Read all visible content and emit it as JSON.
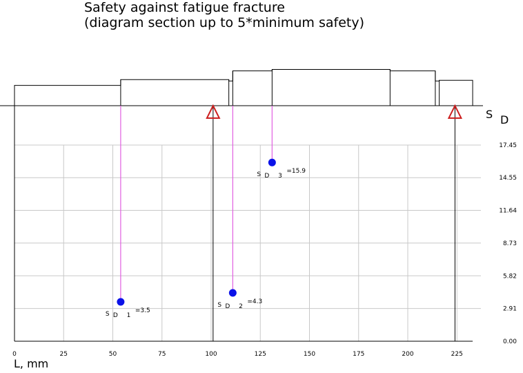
{
  "title": {
    "line1": "Safety against fatigue fracture",
    "line2": "(diagram section up to 5*minimum safety)"
  },
  "chart_data": {
    "type": "scatter",
    "xlabel": "L, mm",
    "ylabel": "S D",
    "ylabel_main": "S",
    "ylabel_sub": "D",
    "xlim": [
      0,
      233
    ],
    "ylim": [
      0,
      17.45
    ],
    "x_ticks": [
      0,
      25,
      50,
      75,
      100,
      125,
      150,
      175,
      200,
      225
    ],
    "y_ticks": [
      "0.00",
      "2.91",
      "5.82",
      "8.73",
      "11.64",
      "14.55",
      "17.45"
    ],
    "grid": true,
    "point_color": "#0b12e8",
    "marker_color": "#cc2020",
    "guide_color": "#e05ee0",
    "points": [
      {
        "x": 54,
        "y": 3.5,
        "label_main": "S",
        "label_sub": "D 1",
        "label_value": "=3.5"
      },
      {
        "x": 111,
        "y": 4.3,
        "label_main": "S",
        "label_sub": "D 2",
        "label_value": "=4.3"
      },
      {
        "x": 131,
        "y": 15.9,
        "label_main": "S",
        "label_sub": "D 3",
        "label_value": "=15.9"
      }
    ],
    "support_markers": [
      {
        "x": 101
      },
      {
        "x": 224
      }
    ],
    "shaft_profile": [
      {
        "x0": 0,
        "x1": 54,
        "h": 14
      },
      {
        "x0": 54,
        "x1": 109,
        "h": 18
      },
      {
        "x0": 109,
        "x1": 111,
        "h": 17
      },
      {
        "x0": 111,
        "x1": 131,
        "h": 24
      },
      {
        "x0": 131,
        "x1": 191,
        "h": 25
      },
      {
        "x0": 191,
        "x1": 214,
        "h": 24
      },
      {
        "x0": 214,
        "x1": 216,
        "h": 17
      },
      {
        "x0": 216,
        "x1": 233,
        "h": 17.5
      }
    ]
  }
}
